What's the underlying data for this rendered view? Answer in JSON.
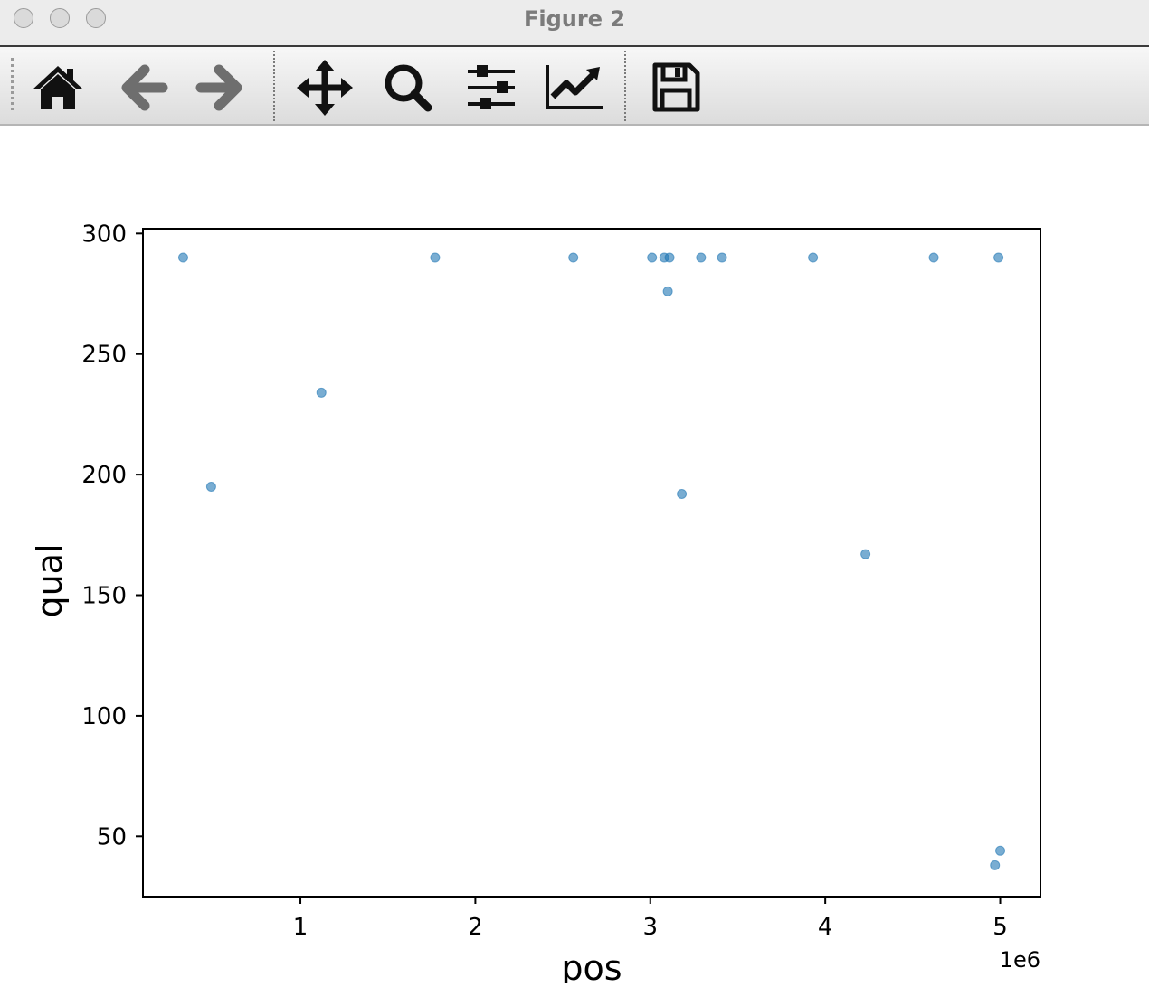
{
  "window": {
    "title": "Figure 2"
  },
  "toolbar": {
    "buttons": [
      {
        "name": "home-icon",
        "label": "Home"
      },
      {
        "name": "back-arrow-icon",
        "label": "Back"
      },
      {
        "name": "forward-arrow-icon",
        "label": "Forward"
      },
      {
        "name": "pan-icon",
        "label": "Pan"
      },
      {
        "name": "zoom-icon",
        "label": "Zoom"
      },
      {
        "name": "configure-subplots-icon",
        "label": "Subplots"
      },
      {
        "name": "edit-axis-icon",
        "label": "Customize"
      },
      {
        "name": "save-icon",
        "label": "Save"
      }
    ]
  },
  "colors": {
    "marker": "#1f77b4",
    "axes": "#000000",
    "toolbar_icon": "#111111",
    "toolbar_icon_disabled": "#6e6e6e"
  },
  "chart_data": {
    "type": "scatter",
    "title": "",
    "xlabel": "pos",
    "ylabel": "qual",
    "x_offset_label": "1e6",
    "xlim": [
      100000,
      5230000
    ],
    "ylim": [
      25,
      302
    ],
    "xticks": [
      1,
      2,
      3,
      4,
      5
    ],
    "yticks": [
      50,
      100,
      150,
      200,
      250,
      300
    ],
    "grid": false,
    "marker_alpha": 0.6,
    "points": [
      {
        "x": 330000,
        "y": 290
      },
      {
        "x": 1770000,
        "y": 290
      },
      {
        "x": 2560000,
        "y": 290
      },
      {
        "x": 3010000,
        "y": 290
      },
      {
        "x": 3080000,
        "y": 290
      },
      {
        "x": 3110000,
        "y": 290
      },
      {
        "x": 3290000,
        "y": 290
      },
      {
        "x": 3410000,
        "y": 290
      },
      {
        "x": 3930000,
        "y": 290
      },
      {
        "x": 4620000,
        "y": 290
      },
      {
        "x": 4990000,
        "y": 290
      },
      {
        "x": 3100000,
        "y": 276
      },
      {
        "x": 1120000,
        "y": 234
      },
      {
        "x": 490000,
        "y": 195
      },
      {
        "x": 3180000,
        "y": 192
      },
      {
        "x": 4230000,
        "y": 167
      },
      {
        "x": 5000000,
        "y": 44
      },
      {
        "x": 4970000,
        "y": 38
      }
    ]
  }
}
